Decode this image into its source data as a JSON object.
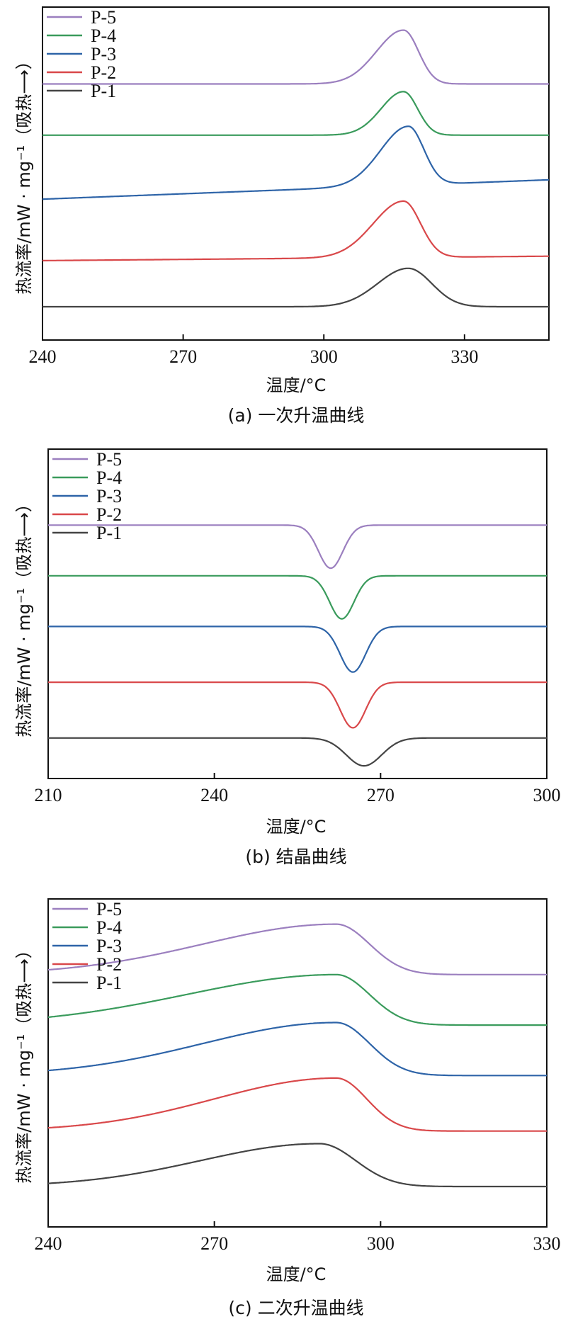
{
  "figure": {
    "y_axis_label": "热流率/mW · mg⁻¹（吸热⟶）",
    "x_axis_label": "温度/°C"
  },
  "chart_data": [
    {
      "type": "line",
      "caption": "(a) 一次升温曲线",
      "xlabel": "温度/°C",
      "ylabel": "热流率/mW · mg⁻¹（吸热⟶）",
      "xlim": [
        240,
        348
      ],
      "xticks": [
        240,
        270,
        300,
        330
      ],
      "legend_position": "top-left",
      "grid": false,
      "series": [
        {
          "name": "P-5",
          "color": "#9b7fbf",
          "baseline": 4.0,
          "slope": 0.0,
          "peaks": [
            {
              "center": 317,
              "height": 1.05,
              "width": 3.2,
              "skew": 1.8
            }
          ]
        },
        {
          "name": "P-4",
          "color": "#3a9b5c",
          "baseline": 3.0,
          "slope": 0.0,
          "peaks": [
            {
              "center": 317,
              "height": 0.85,
              "width": 3.0,
              "skew": 1.6
            }
          ]
        },
        {
          "name": "P-3",
          "color": "#2e64a8",
          "baseline": 1.75,
          "slope": 0.0035,
          "peaks": [
            {
              "center": 318,
              "height": 1.15,
              "width": 3.3,
              "skew": 1.8
            }
          ]
        },
        {
          "name": "P-2",
          "color": "#d9484a",
          "baseline": 0.55,
          "slope": 0.0008,
          "peaks": [
            {
              "center": 317,
              "height": 1.1,
              "width": 3.6,
              "skew": 1.8
            }
          ]
        },
        {
          "name": "P-1",
          "color": "#444444",
          "baseline": -0.35,
          "slope": 0.0,
          "peaks": [
            {
              "center": 318,
              "height": 0.75,
              "width": 5.0,
              "skew": 1.3
            }
          ]
        }
      ]
    },
    {
      "type": "line",
      "caption": "(b) 结晶曲线",
      "xlabel": "温度/°C",
      "ylabel": "热流率/mW · mg⁻¹（吸热⟶）",
      "xlim": [
        210,
        300
      ],
      "xticks": [
        210,
        240,
        270,
        300
      ],
      "legend_position": "top-left",
      "grid": false,
      "series": [
        {
          "name": "P-5",
          "color": "#9b7fbf",
          "baseline": 4.0,
          "slope": 0.0,
          "peaks": [
            {
              "center": 261,
              "height": -0.85,
              "width": 2.2,
              "skew": 1.0
            }
          ]
        },
        {
          "name": "P-4",
          "color": "#3a9b5c",
          "baseline": 3.0,
          "slope": 0.0,
          "peaks": [
            {
              "center": 263,
              "height": -0.85,
              "width": 2.2,
              "skew": 1.0
            }
          ]
        },
        {
          "name": "P-3",
          "color": "#2e64a8",
          "baseline": 2.0,
          "slope": 0.0,
          "peaks": [
            {
              "center": 265,
              "height": -0.9,
              "width": 2.3,
              "skew": 1.0
            }
          ]
        },
        {
          "name": "P-2",
          "color": "#d9484a",
          "baseline": 0.9,
          "slope": 0.0,
          "peaks": [
            {
              "center": 265,
              "height": -0.9,
              "width": 2.3,
              "skew": 1.0
            }
          ]
        },
        {
          "name": "P-1",
          "color": "#444444",
          "baseline": -0.2,
          "slope": 0.0,
          "peaks": [
            {
              "center": 267,
              "height": -0.55,
              "width": 3.2,
              "skew": 1.0
            }
          ]
        }
      ]
    },
    {
      "type": "line",
      "caption": "(c) 二次升温曲线",
      "xlabel": "温度/°C",
      "ylabel": "热流率/mW · mg⁻¹（吸热⟶）",
      "xlim": [
        240,
        330
      ],
      "xticks": [
        240,
        270,
        300,
        330
      ],
      "legend_position": "top-left",
      "grid": false,
      "series": [
        {
          "name": "P-5",
          "color": "#9b7fbf",
          "baseline": 4.0,
          "slope": 0.0,
          "peaks": [
            {
              "center": 292,
              "height": 1.0,
              "width": 6.0,
              "skew": 4.0
            }
          ]
        },
        {
          "name": "P-4",
          "color": "#3a9b5c",
          "baseline": 3.0,
          "slope": 0.0,
          "peaks": [
            {
              "center": 292,
              "height": 1.0,
              "width": 6.0,
              "skew": 4.5
            }
          ]
        },
        {
          "name": "P-3",
          "color": "#2e64a8",
          "baseline": 2.0,
          "slope": 0.0,
          "peaks": [
            {
              "center": 292,
              "height": 1.05,
              "width": 6.0,
              "skew": 4.0
            }
          ]
        },
        {
          "name": "P-2",
          "color": "#d9484a",
          "baseline": 0.9,
          "slope": 0.0,
          "peaks": [
            {
              "center": 292,
              "height": 1.05,
              "width": 5.5,
              "skew": 4.0
            }
          ]
        },
        {
          "name": "P-1",
          "color": "#444444",
          "baseline": -0.2,
          "slope": 0.0,
          "peaks": [
            {
              "center": 289,
              "height": 0.85,
              "width": 6.5,
              "skew": 3.3
            }
          ]
        }
      ]
    }
  ]
}
